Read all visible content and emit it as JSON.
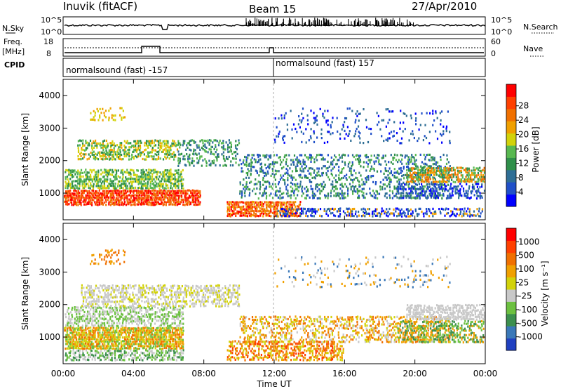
{
  "header": {
    "station": "Inuvik (fitACF)",
    "beam": "Beam 15",
    "date": "27/Apr/2010"
  },
  "top_panels": {
    "nsky_label": "N.Sky",
    "nsearch_label": "N.Search",
    "nsky_ticks": [
      "10^5",
      "10^0"
    ],
    "nsearch_ticks": [
      "10^5",
      "10^0"
    ],
    "freq_label_line1": "Freq.",
    "freq_label_line2": "[MHz]",
    "freq_ticks": [
      "18",
      "8"
    ],
    "nave_label": "Nave",
    "nave_ticks": [
      "60",
      "0"
    ],
    "cpid_label": "CPID",
    "cpid_segments": [
      "normalsound (fast) -157",
      "normalsound (fast) 157"
    ]
  },
  "chart_data": [
    {
      "type": "heatmap",
      "title": "",
      "ylabel": "Slant Range [km]",
      "xlabel": "",
      "x_ticks": [
        "00:00",
        "04:00",
        "08:00",
        "12:00",
        "16:00",
        "20:00",
        "00:00"
      ],
      "y_ticks": [
        "1000",
        "2000",
        "3000",
        "4000"
      ],
      "ylim": [
        180,
        4500
      ],
      "xlim_hours": [
        0,
        24
      ],
      "colorbar": {
        "label": "Power [dB]",
        "ticks": [
          "4",
          "8",
          "12",
          "16",
          "20",
          "24",
          "28"
        ],
        "colors": [
          "#0000ff",
          "#2050c8",
          "#2e6e95",
          "#2f8f4a",
          "#58b850",
          "#d2d20a",
          "#f0a000",
          "#f07000",
          "#ff4000",
          "#ff0000"
        ]
      }
    },
    {
      "type": "heatmap",
      "title": "",
      "ylabel": "Slant Range [km]",
      "xlabel": "Time UT",
      "x_ticks": [
        "00:00",
        "04:00",
        "08:00",
        "12:00",
        "16:00",
        "20:00",
        "00:00"
      ],
      "y_ticks": [
        "1000",
        "2000",
        "3000",
        "4000"
      ],
      "ylim": [
        180,
        4500
      ],
      "xlim_hours": [
        0,
        24
      ],
      "colorbar": {
        "label": "Velocity [m s⁻¹]",
        "ticks": [
          "1000",
          "500",
          "100",
          "25",
          "-25",
          "-100",
          "-500",
          "-1000"
        ],
        "colors": [
          "#2040c0",
          "#3a78b8",
          "#3c8f4e",
          "#6cc040",
          "#c8c8c8",
          "#d2d20a",
          "#f0a000",
          "#f07000",
          "#ff4000",
          "#ff0000"
        ]
      }
    }
  ]
}
